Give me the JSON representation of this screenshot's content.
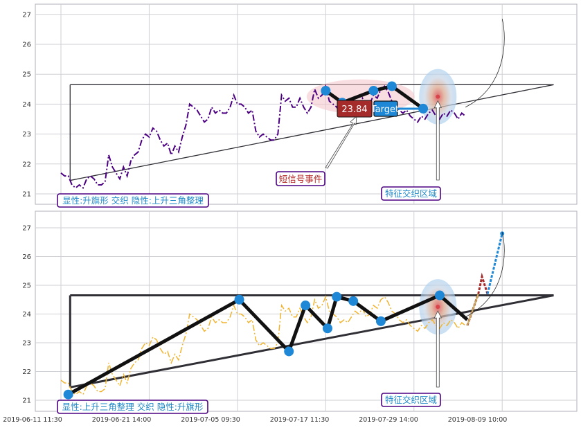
{
  "colors": {
    "background": "#ffffff",
    "grid": "#cfcfd6",
    "axis": "#b0b0b8",
    "top_price": "#4b0082",
    "bottom_price": "#f0b430",
    "pattern_line": "#2f2f35",
    "marker": "#1e88d6",
    "label_text": "#1e88c8",
    "label_border": "#4b0082",
    "signal_text": "#b22222",
    "target_red": "#a52a2a",
    "highlight_pink": "#f4c2c8",
    "zone_blue": "#a8cdee",
    "zone_tan": "#d9b48a"
  },
  "chart_data": [
    {
      "type": "line",
      "panel": "top",
      "ylim": [
        20.8,
        27.3
      ],
      "yticks": [
        "21",
        "22",
        "23",
        "24",
        "25",
        "26",
        "27"
      ],
      "series": [
        {
          "style": "dash-dot",
          "x": [
            0,
            2,
            4,
            6,
            8,
            10,
            12,
            14,
            16,
            18,
            20,
            22,
            24,
            26,
            28,
            30,
            32,
            34,
            36,
            38,
            40,
            42,
            44,
            46,
            48,
            50,
            52,
            54,
            56,
            58,
            60,
            62,
            64,
            66,
            68,
            70,
            72,
            74,
            76,
            78,
            80,
            82,
            84,
            86,
            88,
            90,
            92,
            94,
            96,
            98,
            100,
            102,
            104,
            106,
            108,
            110,
            112,
            114,
            116,
            118,
            120,
            122,
            124,
            126,
            128,
            130,
            132,
            134,
            136,
            138,
            140,
            142,
            144,
            146,
            148,
            150,
            152,
            154,
            156,
            158,
            160,
            162,
            164,
            166,
            168,
            170,
            172,
            174,
            176,
            178,
            180,
            182,
            184,
            186,
            188,
            190,
            192,
            194,
            196,
            198,
            200,
            202,
            204,
            206,
            208,
            210,
            212,
            214,
            216,
            218,
            220
          ],
          "y": [
            21.7,
            21.6,
            21.6,
            21.3,
            21.2,
            21.3,
            21.2,
            21.5,
            21.6,
            21.5,
            21.3,
            21.3,
            21.4,
            22.3,
            21.9,
            21.7,
            21.5,
            21.9,
            21.6,
            22.1,
            22.3,
            22.4,
            22.8,
            23.0,
            22.9,
            23.2,
            23.1,
            22.8,
            22.6,
            22.7,
            22.3,
            22.6,
            22.4,
            22.9,
            23.3,
            24.0,
            23.9,
            23.8,
            23.6,
            23.4,
            23.5,
            23.9,
            23.7,
            23.8,
            23.7,
            23.7,
            23.9,
            24.3,
            24.0,
            24.0,
            23.9,
            23.7,
            23.8,
            23.1,
            22.9,
            23.0,
            22.9,
            22.8,
            22.8,
            23.0,
            24.3,
            24.1,
            24.2,
            23.9,
            23.9,
            24.2,
            23.9,
            23.7,
            23.9,
            24.5,
            24.2,
            24.3,
            24.6,
            24.1,
            24.0,
            23.9,
            23.7,
            23.8,
            23.7,
            23.9,
            24.1,
            24.0,
            24.2,
            23.9,
            24.0,
            24.3,
            24.2,
            24.5,
            24.6,
            24.4,
            24.1,
            24.0,
            23.8,
            23.7,
            23.8,
            23.6,
            23.5,
            23.4,
            23.6,
            23.5,
            23.7,
            23.8,
            23.6,
            23.5,
            23.7,
            23.6,
            23.8,
            23.7,
            23.5,
            23.7,
            23.6
          ]
        }
      ],
      "annotations": {
        "pattern_label": "显性:升旗形 交织 隐性:上升三角整理",
        "signal_label": "短信号事件",
        "zone_label": "特征交织区域",
        "target_value": "23.84",
        "target_label": "Target"
      }
    },
    {
      "type": "line",
      "panel": "bottom",
      "ylim": [
        20.8,
        27.3
      ],
      "yticks": [
        "21",
        "22",
        "23",
        "24",
        "25",
        "26",
        "27"
      ],
      "series": [
        {
          "style": "dash-dot",
          "x": [
            0,
            2,
            4,
            6,
            8,
            10,
            12,
            14,
            16,
            18,
            20,
            22,
            24,
            26,
            28,
            30,
            32,
            34,
            36,
            38,
            40,
            42,
            44,
            46,
            48,
            50,
            52,
            54,
            56,
            58,
            60,
            62,
            64,
            66,
            68,
            70,
            72,
            74,
            76,
            78,
            80,
            82,
            84,
            86,
            88,
            90,
            92,
            94,
            96,
            98,
            100,
            102,
            104,
            106,
            108,
            110,
            112,
            114,
            116,
            118,
            120,
            122,
            124,
            126,
            128,
            130,
            132,
            134,
            136,
            138,
            140,
            142,
            144,
            146,
            148,
            150,
            152,
            154,
            156,
            158,
            160,
            162,
            164,
            166,
            168,
            170,
            172,
            174,
            176,
            178,
            180,
            182,
            184,
            186,
            188,
            190,
            192,
            194,
            196,
            198,
            200,
            202,
            204,
            206,
            208,
            210,
            212,
            214,
            216,
            218,
            220
          ],
          "y": [
            21.7,
            21.6,
            21.6,
            21.3,
            21.2,
            21.3,
            21.2,
            21.5,
            21.6,
            21.5,
            21.3,
            21.3,
            21.4,
            22.3,
            21.9,
            21.7,
            21.5,
            21.9,
            21.6,
            22.1,
            22.3,
            22.4,
            22.8,
            23.0,
            22.9,
            23.2,
            23.1,
            22.8,
            22.6,
            22.7,
            22.3,
            22.6,
            22.4,
            22.9,
            23.3,
            24.0,
            23.9,
            23.8,
            23.6,
            23.4,
            23.5,
            23.9,
            23.7,
            23.8,
            23.7,
            23.7,
            23.9,
            24.3,
            24.0,
            24.0,
            23.9,
            23.7,
            23.8,
            23.1,
            22.9,
            23.0,
            22.9,
            22.8,
            22.8,
            23.0,
            24.3,
            24.1,
            24.2,
            23.9,
            23.9,
            24.2,
            23.9,
            23.7,
            23.9,
            24.5,
            24.2,
            24.3,
            24.6,
            24.1,
            24.0,
            23.9,
            23.7,
            23.8,
            23.7,
            23.9,
            24.1,
            24.0,
            24.2,
            23.9,
            24.0,
            24.3,
            24.2,
            24.5,
            24.6,
            24.4,
            24.1,
            24.0,
            23.8,
            23.7,
            23.8,
            23.6,
            23.5,
            23.4,
            23.6,
            23.5,
            23.7,
            23.8,
            23.6,
            23.5,
            23.7,
            23.6,
            23.8,
            23.7,
            23.5,
            23.7,
            23.6
          ]
        }
      ],
      "zigzag": {
        "x": [
          4,
          97,
          124,
          133,
          145,
          150,
          159,
          174,
          206,
          221
        ],
        "y": [
          21.2,
          24.5,
          22.7,
          24.3,
          23.5,
          24.6,
          24.45,
          23.75,
          24.65,
          23.8
        ]
      },
      "projection": {
        "x": [
          221,
          227,
          229,
          232,
          240
        ],
        "y": [
          23.6,
          24.7,
          25.3,
          24.7,
          26.8
        ]
      },
      "annotations": {
        "pattern_label": "显性:上升三角整理 交织 隐性:升旗形",
        "zone_label": "特征交织区域"
      }
    }
  ],
  "x_axis": {
    "ticks": [
      {
        "pos": 0,
        "label": "2019-06-11 11:30"
      },
      {
        "pos": 48,
        "label": "2019-06-21 14:00"
      },
      {
        "pos": 96,
        "label": "2019-07-05 09:30"
      },
      {
        "pos": 144,
        "label": "2019-07-17 11:30"
      },
      {
        "pos": 192,
        "label": "2019-07-29 14:00"
      },
      {
        "pos": 240,
        "label": "2019-08-09 10:00"
      }
    ]
  }
}
